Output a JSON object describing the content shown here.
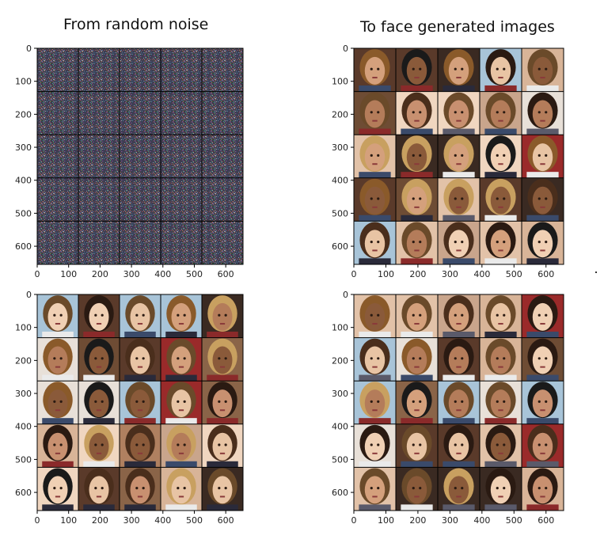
{
  "titles": {
    "left": "From random noise",
    "right": "To face generated images"
  },
  "axes": {
    "x_ticks": [
      "0",
      "100",
      "200",
      "300",
      "400",
      "500",
      "600"
    ],
    "y_ticks": [
      "0",
      "100",
      "200",
      "300",
      "400",
      "500",
      "600"
    ],
    "x_values": [
      0,
      100,
      200,
      300,
      400,
      500,
      600
    ],
    "y_values": [
      0,
      100,
      200,
      300,
      400,
      500,
      600
    ],
    "extent": 655
  },
  "panels": [
    {
      "id": "noise",
      "content": "random-noise-grid",
      "grid": [
        5,
        5
      ]
    },
    {
      "id": "generated-early",
      "content": "generated-faces-grid",
      "grid": [
        5,
        5
      ]
    },
    {
      "id": "real",
      "content": "real-faces-grid",
      "grid": [
        5,
        5
      ]
    },
    {
      "id": "generated-final",
      "content": "generated-faces-grid",
      "grid": [
        5,
        5
      ]
    }
  ],
  "colors": {
    "grid_line": "#000000",
    "axis": "#000000",
    "noise_palette": [
      "#3a3a5a",
      "#5a3a4a",
      "#2e4a3a",
      "#6a5a7a",
      "#4a4a4a",
      "#3a5a6a",
      "#7a4a5a",
      "#2a2a3a"
    ],
    "face_palette": [
      "#c9a58c",
      "#8a6448",
      "#e2c2a8",
      "#5a3a2a",
      "#b08060",
      "#d8b498",
      "#6e4c34",
      "#f0d6c0",
      "#3a2a22",
      "#a8c4d8",
      "#9a2a2a",
      "#e8e0d8"
    ]
  }
}
